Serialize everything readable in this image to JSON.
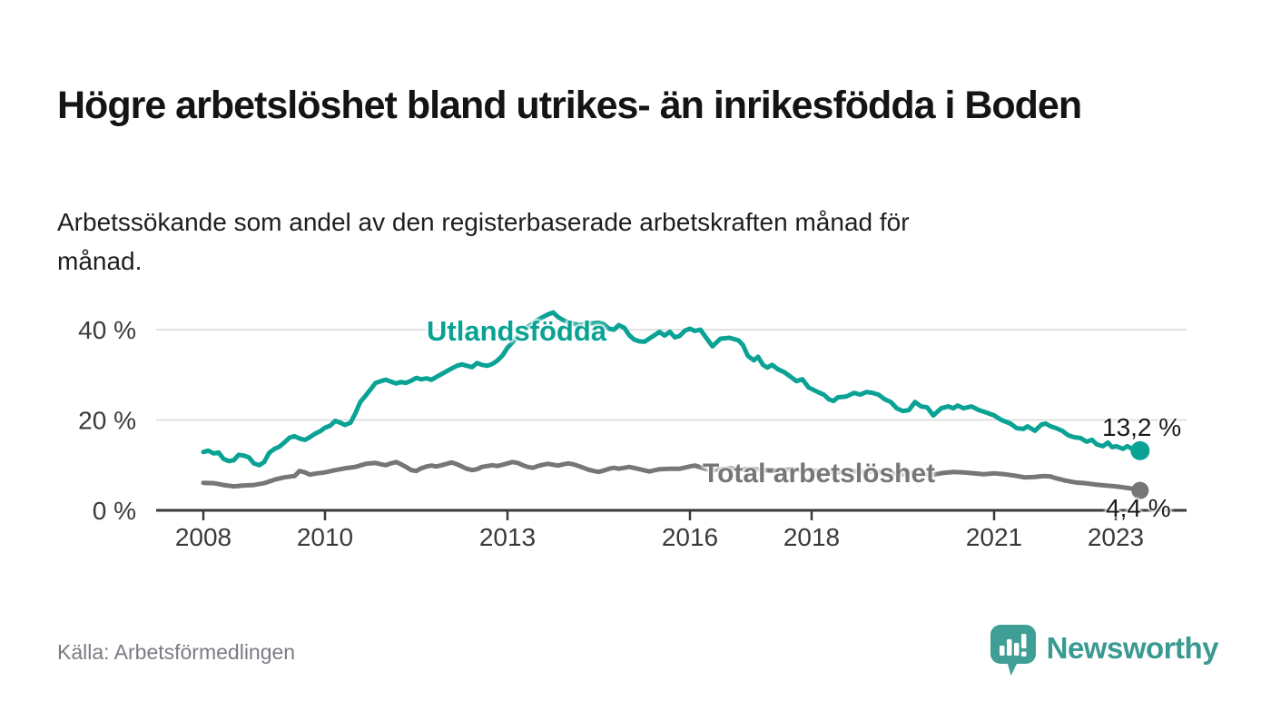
{
  "page": {
    "background": "#ffffff"
  },
  "header": {
    "title": "Högre arbetslöshet bland utrikes- än inrikesfödda i Boden",
    "subtitle": "Arbetssökande som andel av den registerbaserade arbetskraften månad för månad."
  },
  "colors": {
    "series_utlandsfodda": "#0aa294",
    "series_total": "#767676",
    "grid": "#d8d8d8",
    "axis": "#3a3a3a",
    "axis_text": "#3a3a3a",
    "end_label_text": "#1a1a1a",
    "brand_teal": "#3a9a91",
    "source_text": "#7b7b83"
  },
  "chart_data": {
    "type": "line",
    "unit": "%",
    "grid": "horizontal",
    "legend_position": "inline-labels",
    "xlim": [
      2008,
      2023.4
    ],
    "ylim": [
      0,
      45
    ],
    "y_ticks": [
      {
        "value": 40,
        "label": "40 %"
      },
      {
        "value": 20,
        "label": "20 %"
      },
      {
        "value": 0,
        "label": "0 %"
      }
    ],
    "x_ticks": [
      {
        "year": 2008,
        "label": "2008"
      },
      {
        "year": 2010,
        "label": "2010"
      },
      {
        "year": 2013,
        "label": "2013"
      },
      {
        "year": 2016,
        "label": "2016"
      },
      {
        "year": 2018,
        "label": "2018"
      },
      {
        "year": 2021,
        "label": "2021"
      },
      {
        "year": 2023,
        "label": "2023"
      }
    ],
    "series": [
      {
        "name": "Utlandsfödda",
        "color": "#0aa294",
        "end_label": "13,2 %",
        "end_value": 13.2,
        "points": [
          [
            2008.0,
            12.9
          ],
          [
            2008.08,
            13.2
          ],
          [
            2008.17,
            12.6
          ],
          [
            2008.25,
            12.8
          ],
          [
            2008.33,
            11.4
          ],
          [
            2008.42,
            10.9
          ],
          [
            2008.5,
            11.1
          ],
          [
            2008.58,
            12.3
          ],
          [
            2008.67,
            12.1
          ],
          [
            2008.75,
            11.7
          ],
          [
            2008.83,
            10.4
          ],
          [
            2008.92,
            10.0
          ],
          [
            2009.0,
            10.7
          ],
          [
            2009.08,
            12.7
          ],
          [
            2009.17,
            13.6
          ],
          [
            2009.25,
            14.1
          ],
          [
            2009.33,
            15.0
          ],
          [
            2009.42,
            16.1
          ],
          [
            2009.5,
            16.4
          ],
          [
            2009.58,
            15.9
          ],
          [
            2009.67,
            15.6
          ],
          [
            2009.75,
            16.2
          ],
          [
            2009.83,
            16.9
          ],
          [
            2009.92,
            17.5
          ],
          [
            2010.0,
            18.3
          ],
          [
            2010.08,
            18.7
          ],
          [
            2010.17,
            19.8
          ],
          [
            2010.25,
            19.4
          ],
          [
            2010.33,
            18.9
          ],
          [
            2010.42,
            19.4
          ],
          [
            2010.5,
            21.5
          ],
          [
            2010.58,
            24.0
          ],
          [
            2010.67,
            25.4
          ],
          [
            2010.75,
            26.8
          ],
          [
            2010.83,
            28.2
          ],
          [
            2010.92,
            28.6
          ],
          [
            2011.0,
            28.9
          ],
          [
            2011.08,
            28.5
          ],
          [
            2011.17,
            28.1
          ],
          [
            2011.25,
            28.4
          ],
          [
            2011.33,
            28.2
          ],
          [
            2011.42,
            28.7
          ],
          [
            2011.5,
            29.3
          ],
          [
            2011.58,
            29.0
          ],
          [
            2011.67,
            29.2
          ],
          [
            2011.75,
            28.9
          ],
          [
            2011.83,
            29.5
          ],
          [
            2011.92,
            30.2
          ],
          [
            2012.0,
            30.8
          ],
          [
            2012.08,
            31.4
          ],
          [
            2012.17,
            32.0
          ],
          [
            2012.25,
            32.3
          ],
          [
            2012.33,
            32.0
          ],
          [
            2012.42,
            31.7
          ],
          [
            2012.5,
            32.6
          ],
          [
            2012.58,
            32.2
          ],
          [
            2012.67,
            32.0
          ],
          [
            2012.75,
            32.4
          ],
          [
            2012.83,
            33.1
          ],
          [
            2012.92,
            34.3
          ],
          [
            2013.0,
            36.0
          ],
          [
            2013.17,
            38.5
          ],
          [
            2013.33,
            40.6
          ],
          [
            2013.5,
            42.2
          ],
          [
            2013.67,
            43.4
          ],
          [
            2013.75,
            43.8
          ],
          [
            2013.83,
            42.8
          ],
          [
            2013.92,
            42.1
          ],
          [
            2014.0,
            41.6
          ],
          [
            2014.17,
            41.0
          ],
          [
            2014.33,
            41.3
          ],
          [
            2014.5,
            41.5
          ],
          [
            2014.58,
            41.2
          ],
          [
            2014.67,
            40.2
          ],
          [
            2014.75,
            40.0
          ],
          [
            2014.83,
            41.0
          ],
          [
            2014.92,
            40.4
          ],
          [
            2015.0,
            38.8
          ],
          [
            2015.08,
            37.8
          ],
          [
            2015.17,
            37.4
          ],
          [
            2015.25,
            37.3
          ],
          [
            2015.33,
            38.0
          ],
          [
            2015.42,
            38.8
          ],
          [
            2015.5,
            39.5
          ],
          [
            2015.58,
            38.7
          ],
          [
            2015.67,
            39.5
          ],
          [
            2015.75,
            38.3
          ],
          [
            2015.83,
            38.6
          ],
          [
            2015.92,
            39.8
          ],
          [
            2016.0,
            40.2
          ],
          [
            2016.08,
            39.7
          ],
          [
            2016.17,
            40.0
          ],
          [
            2016.25,
            38.5
          ],
          [
            2016.37,
            36.3
          ],
          [
            2016.5,
            38.0
          ],
          [
            2016.65,
            38.2
          ],
          [
            2016.8,
            37.6
          ],
          [
            2016.87,
            36.6
          ],
          [
            2016.95,
            34.2
          ],
          [
            2017.05,
            33.2
          ],
          [
            2017.12,
            34.0
          ],
          [
            2017.2,
            32.2
          ],
          [
            2017.27,
            31.6
          ],
          [
            2017.35,
            32.2
          ],
          [
            2017.45,
            31.2
          ],
          [
            2017.55,
            30.6
          ],
          [
            2017.65,
            29.6
          ],
          [
            2017.75,
            28.6
          ],
          [
            2017.85,
            29.0
          ],
          [
            2017.95,
            27.2
          ],
          [
            2018.1,
            26.2
          ],
          [
            2018.2,
            25.6
          ],
          [
            2018.28,
            24.6
          ],
          [
            2018.36,
            24.2
          ],
          [
            2018.43,
            25.0
          ],
          [
            2018.57,
            25.2
          ],
          [
            2018.7,
            26.0
          ],
          [
            2018.8,
            25.6
          ],
          [
            2018.9,
            26.2
          ],
          [
            2019.0,
            26.0
          ],
          [
            2019.1,
            25.6
          ],
          [
            2019.2,
            24.6
          ],
          [
            2019.3,
            24.0
          ],
          [
            2019.4,
            22.6
          ],
          [
            2019.5,
            22.0
          ],
          [
            2019.6,
            22.2
          ],
          [
            2019.7,
            24.0
          ],
          [
            2019.8,
            23.0
          ],
          [
            2019.9,
            22.8
          ],
          [
            2020.0,
            21.0
          ],
          [
            2020.13,
            22.6
          ],
          [
            2020.25,
            23.0
          ],
          [
            2020.33,
            22.6
          ],
          [
            2020.4,
            23.2
          ],
          [
            2020.5,
            22.6
          ],
          [
            2020.63,
            23.0
          ],
          [
            2020.75,
            22.2
          ],
          [
            2020.88,
            21.6
          ],
          [
            2021.0,
            21.0
          ],
          [
            2021.12,
            20.0
          ],
          [
            2021.27,
            19.2
          ],
          [
            2021.37,
            18.2
          ],
          [
            2021.48,
            18.0
          ],
          [
            2021.55,
            18.6
          ],
          [
            2021.67,
            17.6
          ],
          [
            2021.78,
            19.0
          ],
          [
            2021.85,
            19.2
          ],
          [
            2021.93,
            18.6
          ],
          [
            2022.02,
            18.2
          ],
          [
            2022.12,
            17.6
          ],
          [
            2022.22,
            16.6
          ],
          [
            2022.31,
            16.2
          ],
          [
            2022.42,
            16.0
          ],
          [
            2022.52,
            15.2
          ],
          [
            2022.61,
            15.6
          ],
          [
            2022.69,
            14.6
          ],
          [
            2022.79,
            14.2
          ],
          [
            2022.87,
            15.0
          ],
          [
            2022.94,
            14.0
          ],
          [
            2023.01,
            14.2
          ],
          [
            2023.12,
            13.6
          ],
          [
            2023.19,
            14.2
          ],
          [
            2023.27,
            13.6
          ],
          [
            2023.4,
            13.2
          ]
        ]
      },
      {
        "name": "Total arbetslöshet",
        "color": "#767676",
        "end_label": "4,4 %",
        "end_value": 4.4,
        "points": [
          [
            2008.0,
            6.1
          ],
          [
            2008.17,
            6.0
          ],
          [
            2008.33,
            5.6
          ],
          [
            2008.5,
            5.3
          ],
          [
            2008.67,
            5.5
          ],
          [
            2008.83,
            5.6
          ],
          [
            2009.0,
            6.0
          ],
          [
            2009.17,
            6.8
          ],
          [
            2009.33,
            7.3
          ],
          [
            2009.5,
            7.6
          ],
          [
            2009.58,
            8.7
          ],
          [
            2009.67,
            8.4
          ],
          [
            2009.75,
            7.9
          ],
          [
            2009.83,
            8.1
          ],
          [
            2010.0,
            8.4
          ],
          [
            2010.17,
            8.9
          ],
          [
            2010.33,
            9.3
          ],
          [
            2010.5,
            9.6
          ],
          [
            2010.67,
            10.3
          ],
          [
            2010.83,
            10.5
          ],
          [
            2010.92,
            10.2
          ],
          [
            2011.0,
            10.0
          ],
          [
            2011.08,
            10.4
          ],
          [
            2011.17,
            10.7
          ],
          [
            2011.25,
            10.2
          ],
          [
            2011.33,
            9.6
          ],
          [
            2011.42,
            8.9
          ],
          [
            2011.5,
            8.7
          ],
          [
            2011.58,
            9.3
          ],
          [
            2011.67,
            9.7
          ],
          [
            2011.75,
            9.9
          ],
          [
            2011.83,
            9.7
          ],
          [
            2011.92,
            10.0
          ],
          [
            2012.0,
            10.3
          ],
          [
            2012.08,
            10.6
          ],
          [
            2012.17,
            10.2
          ],
          [
            2012.25,
            9.7
          ],
          [
            2012.33,
            9.2
          ],
          [
            2012.42,
            8.9
          ],
          [
            2012.5,
            9.1
          ],
          [
            2012.58,
            9.6
          ],
          [
            2012.67,
            9.8
          ],
          [
            2012.75,
            10.0
          ],
          [
            2012.83,
            9.8
          ],
          [
            2012.92,
            10.1
          ],
          [
            2013.0,
            10.4
          ],
          [
            2013.08,
            10.7
          ],
          [
            2013.17,
            10.5
          ],
          [
            2013.25,
            10.0
          ],
          [
            2013.33,
            9.6
          ],
          [
            2013.42,
            9.4
          ],
          [
            2013.5,
            9.8
          ],
          [
            2013.58,
            10.1
          ],
          [
            2013.67,
            10.3
          ],
          [
            2013.75,
            10.1
          ],
          [
            2013.83,
            9.9
          ],
          [
            2013.92,
            10.2
          ],
          [
            2014.0,
            10.4
          ],
          [
            2014.08,
            10.2
          ],
          [
            2014.17,
            9.8
          ],
          [
            2014.25,
            9.4
          ],
          [
            2014.33,
            9.0
          ],
          [
            2014.42,
            8.7
          ],
          [
            2014.5,
            8.5
          ],
          [
            2014.58,
            8.8
          ],
          [
            2014.67,
            9.2
          ],
          [
            2014.75,
            9.4
          ],
          [
            2014.83,
            9.2
          ],
          [
            2014.92,
            9.4
          ],
          [
            2015.0,
            9.6
          ],
          [
            2015.17,
            9.1
          ],
          [
            2015.33,
            8.6
          ],
          [
            2015.5,
            9.1
          ],
          [
            2015.67,
            9.2
          ],
          [
            2015.83,
            9.2
          ],
          [
            2016.0,
            9.7
          ],
          [
            2016.08,
            9.9
          ],
          [
            2016.25,
            9.2
          ],
          [
            2016.33,
            8.9
          ],
          [
            2016.5,
            9.1
          ],
          [
            2016.67,
            9.3
          ],
          [
            2016.83,
            9.0
          ],
          [
            2017.0,
            9.2
          ],
          [
            2017.17,
            9.0
          ],
          [
            2017.33,
            8.8
          ],
          [
            2017.5,
            8.9
          ],
          [
            2017.67,
            9.1
          ],
          [
            2017.83,
            8.9
          ],
          [
            2018.0,
            8.8
          ],
          [
            2018.17,
            8.6
          ],
          [
            2018.33,
            8.4
          ],
          [
            2018.5,
            8.5
          ],
          [
            2018.67,
            8.7
          ],
          [
            2018.83,
            8.5
          ],
          [
            2019.0,
            8.6
          ],
          [
            2019.17,
            8.4
          ],
          [
            2019.33,
            8.2
          ],
          [
            2019.5,
            8.0
          ],
          [
            2019.67,
            8.3
          ],
          [
            2019.83,
            8.1
          ],
          [
            2020.0,
            7.9
          ],
          [
            2020.17,
            8.3
          ],
          [
            2020.33,
            8.5
          ],
          [
            2020.5,
            8.4
          ],
          [
            2020.67,
            8.2
          ],
          [
            2020.83,
            8.0
          ],
          [
            2021.0,
            8.2
          ],
          [
            2021.17,
            8.0
          ],
          [
            2021.33,
            7.7
          ],
          [
            2021.5,
            7.3
          ],
          [
            2021.67,
            7.4
          ],
          [
            2021.83,
            7.6
          ],
          [
            2021.93,
            7.5
          ],
          [
            2022.02,
            7.1
          ],
          [
            2022.17,
            6.6
          ],
          [
            2022.33,
            6.2
          ],
          [
            2022.5,
            6.0
          ],
          [
            2022.67,
            5.7
          ],
          [
            2022.83,
            5.5
          ],
          [
            2023.0,
            5.3
          ],
          [
            2023.17,
            5.0
          ],
          [
            2023.27,
            4.8
          ],
          [
            2023.4,
            4.4
          ]
        ]
      }
    ]
  },
  "footer": {
    "source": "Källa: Arbetsförmedlingen",
    "brand": "Newsworthy",
    "brand_icon": "bar-chart-speech-bubble-icon"
  }
}
